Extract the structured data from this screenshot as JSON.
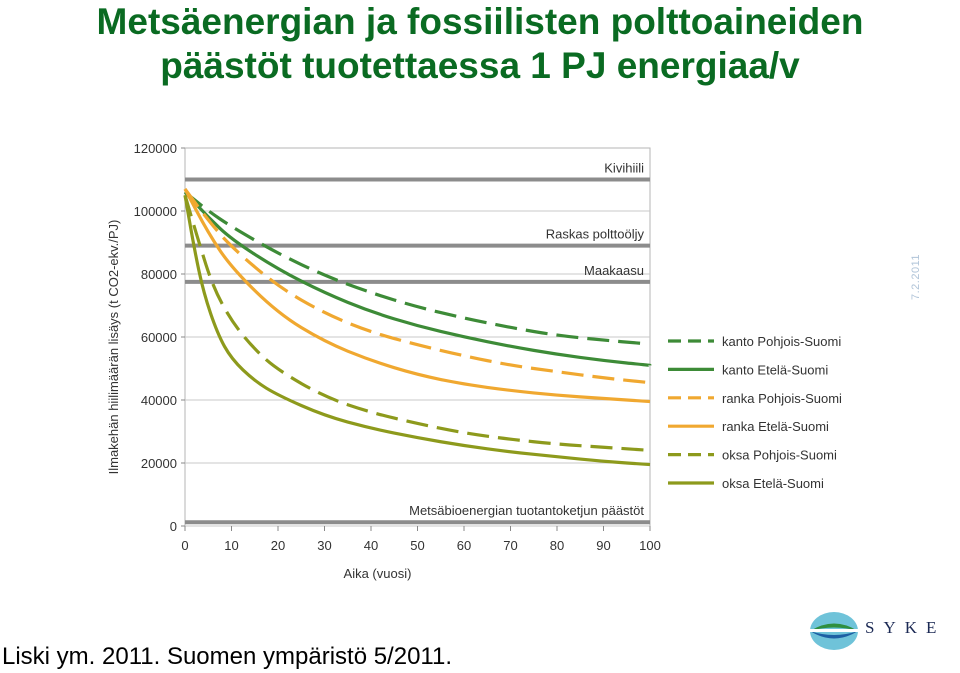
{
  "slide": {
    "title_line1": "Metsäenergian ja fossiilisten polttoaineiden",
    "title_line2": "päästöt tuotettaessa 1 PJ energiaa/v",
    "date": "7.2.2011",
    "citation": "Liski ym. 2011. Suomen ympäristö 5/2011.",
    "logo_text": "SYKE"
  },
  "chart_data": {
    "type": "line",
    "xlabel": "Aika (vuosi)",
    "ylabel": "Ilmakehän hiilimäärän lisäys (t CO2-ekv./PJ)",
    "xlim": [
      0,
      100
    ],
    "ylim": [
      0,
      120000
    ],
    "xticks": [
      0,
      10,
      20,
      30,
      40,
      50,
      60,
      70,
      80,
      90,
      100
    ],
    "yticks": [
      0,
      20000,
      40000,
      60000,
      80000,
      100000,
      120000
    ],
    "ytick_labels": [
      "0",
      "20000",
      "40000",
      "60000",
      "80000",
      "100000",
      "120000"
    ],
    "legend_position": "right",
    "reference_lines": [
      {
        "name": "Kivihiili",
        "value": 110000,
        "color": "#8c8c8c"
      },
      {
        "name": "Raskas polttoöljy",
        "value": 89000,
        "color": "#8c8c8c"
      },
      {
        "name": "Maakaasu",
        "value": 77500,
        "color": "#8c8c8c"
      },
      {
        "name": "Metsäbioenergian tuotantoketjun päästöt",
        "value": 1200,
        "color": "#8c8c8c"
      }
    ],
    "series": [
      {
        "name": "kanto Pohjois-Suomi",
        "color": "#3d8b37",
        "dashed": true,
        "points": [
          [
            0,
            106000
          ],
          [
            5,
            100000
          ],
          [
            10,
            95000
          ],
          [
            20,
            86500
          ],
          [
            30,
            79500
          ],
          [
            40,
            74000
          ],
          [
            50,
            69500
          ],
          [
            60,
            66000
          ],
          [
            70,
            63000
          ],
          [
            80,
            60500
          ],
          [
            90,
            59000
          ],
          [
            98,
            58000
          ]
        ]
      },
      {
        "name": "kanto Etelä-Suomi",
        "color": "#3d8b37",
        "dashed": false,
        "points": [
          [
            0,
            106000
          ],
          [
            5,
            98000
          ],
          [
            10,
            91000
          ],
          [
            20,
            81500
          ],
          [
            30,
            74000
          ],
          [
            40,
            68000
          ],
          [
            50,
            63500
          ],
          [
            60,
            60000
          ],
          [
            70,
            57000
          ],
          [
            80,
            54500
          ],
          [
            90,
            52500
          ],
          [
            100,
            51000
          ]
        ]
      },
      {
        "name": "ranka Pohjois-Suomi",
        "color": "#f0a830",
        "dashed": true,
        "points": [
          [
            0,
            107000
          ],
          [
            5,
            97000
          ],
          [
            10,
            88500
          ],
          [
            20,
            76000
          ],
          [
            30,
            67500
          ],
          [
            40,
            61500
          ],
          [
            50,
            57500
          ],
          [
            60,
            54000
          ],
          [
            70,
            51000
          ],
          [
            80,
            49000
          ],
          [
            90,
            47000
          ],
          [
            100,
            45500
          ]
        ]
      },
      {
        "name": "ranka Etelä-Suomi",
        "color": "#f0a830",
        "dashed": false,
        "points": [
          [
            0,
            107000
          ],
          [
            5,
            93000
          ],
          [
            10,
            82000
          ],
          [
            20,
            67500
          ],
          [
            30,
            58500
          ],
          [
            40,
            52500
          ],
          [
            50,
            48000
          ],
          [
            60,
            45000
          ],
          [
            70,
            43000
          ],
          [
            80,
            41500
          ],
          [
            90,
            40500
          ],
          [
            100,
            39500
          ]
        ]
      },
      {
        "name": "oksa Pohjois-Suomi",
        "color": "#8d9a1c",
        "dashed": true,
        "points": [
          [
            0,
            105000
          ],
          [
            3,
            90000
          ],
          [
            6,
            76000
          ],
          [
            10,
            65000
          ],
          [
            15,
            56000
          ],
          [
            20,
            49500
          ],
          [
            30,
            41000
          ],
          [
            40,
            36000
          ],
          [
            50,
            32500
          ],
          [
            60,
            29500
          ],
          [
            70,
            27500
          ],
          [
            80,
            26000
          ],
          [
            90,
            25000
          ],
          [
            100,
            24000
          ]
        ]
      },
      {
        "name": "oksa Etelä-Suomi",
        "color": "#8d9a1c",
        "dashed": false,
        "points": [
          [
            0,
            105000
          ],
          [
            2,
            88000
          ],
          [
            4,
            74000
          ],
          [
            7,
            61000
          ],
          [
            10,
            53000
          ],
          [
            15,
            46000
          ],
          [
            20,
            41500
          ],
          [
            30,
            35000
          ],
          [
            40,
            31000
          ],
          [
            50,
            28000
          ],
          [
            60,
            25500
          ],
          [
            70,
            23500
          ],
          [
            80,
            22000
          ],
          [
            90,
            20500
          ],
          [
            100,
            19500
          ]
        ]
      }
    ]
  }
}
